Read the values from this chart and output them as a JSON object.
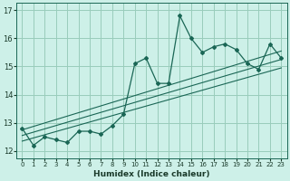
{
  "title": "",
  "xlabel": "Humidex (Indice chaleur)",
  "bg_color": "#cdf0e8",
  "grid_color": "#99ccbb",
  "line_color": "#1a6655",
  "xlim": [
    -0.5,
    23.5
  ],
  "ylim": [
    11.75,
    17.25
  ],
  "xticks": [
    0,
    1,
    2,
    3,
    4,
    5,
    6,
    7,
    8,
    9,
    10,
    11,
    12,
    13,
    14,
    15,
    16,
    17,
    18,
    19,
    20,
    21,
    22,
    23
  ],
  "yticks": [
    12,
    13,
    14,
    15,
    16,
    17
  ],
  "main_line_x": [
    0,
    1,
    2,
    3,
    4,
    5,
    6,
    7,
    8,
    9,
    10,
    11,
    12,
    13,
    14,
    15,
    16,
    17,
    18,
    19,
    20,
    21,
    22,
    23
  ],
  "main_line_y": [
    12.8,
    12.2,
    12.5,
    12.4,
    12.3,
    12.7,
    12.7,
    12.6,
    12.9,
    13.3,
    15.1,
    15.3,
    14.4,
    14.4,
    16.8,
    16.0,
    15.5,
    15.7,
    15.8,
    15.6,
    15.1,
    14.9,
    15.8,
    15.3
  ],
  "trend1_x": [
    0,
    23
  ],
  "trend1_y": [
    12.75,
    15.55
  ],
  "trend2_x": [
    0,
    23
  ],
  "trend2_y": [
    12.55,
    15.25
  ],
  "trend3_x": [
    0,
    23
  ],
  "trend3_y": [
    12.35,
    14.95
  ]
}
